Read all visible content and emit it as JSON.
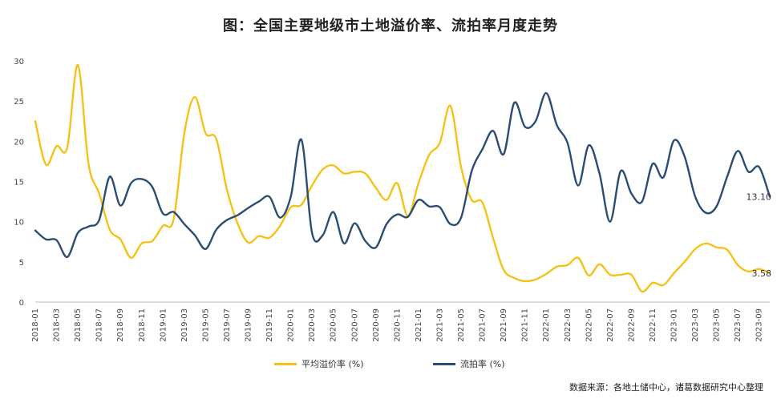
{
  "chart_data": {
    "type": "line",
    "title": "图：全国主要地级市土地溢价率、流拍率月度走势",
    "xlabel": "",
    "ylabel": "",
    "ylim": [
      0,
      30
    ],
    "y_ticks": [
      0,
      5,
      10,
      15,
      20,
      25,
      30
    ],
    "grid": false,
    "legend_position": "bottom",
    "x_tick_labels": [
      "2018-01",
      "2018-03",
      "2018-05",
      "2018-07",
      "2018-09",
      "2018-11",
      "2019-01",
      "2019-03",
      "2019-05",
      "2019-07",
      "2019-09",
      "2019-11",
      "2020-01",
      "2020-03",
      "2020-05",
      "2020-07",
      "2020-09",
      "2020-11",
      "2021-01",
      "2021-03",
      "2021-05",
      "2021-07",
      "2021-09",
      "2021-11",
      "2022-01",
      "2022-03",
      "2022-05",
      "2022-07",
      "2022-09",
      "2022-11",
      "2023-01",
      "2023-03",
      "2023-05",
      "2023-07",
      "2023-09"
    ],
    "x": [
      "2018-01",
      "2018-02",
      "2018-03",
      "2018-04",
      "2018-05",
      "2018-06",
      "2018-07",
      "2018-08",
      "2018-09",
      "2018-10",
      "2018-11",
      "2018-12",
      "2019-01",
      "2019-02",
      "2019-03",
      "2019-04",
      "2019-05",
      "2019-06",
      "2019-07",
      "2019-08",
      "2019-09",
      "2019-10",
      "2019-11",
      "2019-12",
      "2020-01",
      "2020-02",
      "2020-03",
      "2020-04",
      "2020-05",
      "2020-06",
      "2020-07",
      "2020-08",
      "2020-09",
      "2020-10",
      "2020-11",
      "2020-12",
      "2021-01",
      "2021-02",
      "2021-03",
      "2021-04",
      "2021-05",
      "2021-06",
      "2021-07",
      "2021-08",
      "2021-09",
      "2021-10",
      "2021-11",
      "2021-12",
      "2022-01",
      "2022-02",
      "2022-03",
      "2022-04",
      "2022-05",
      "2022-06",
      "2022-07",
      "2022-08",
      "2022-09",
      "2022-10",
      "2022-11",
      "2022-12",
      "2023-01",
      "2023-02",
      "2023-03",
      "2023-04",
      "2023-05",
      "2023-06",
      "2023-07",
      "2023-08",
      "2023-09",
      "2023-10"
    ],
    "series": [
      {
        "name": "平均溢价率 (%)",
        "color": "#F5C218",
        "end_label": "3.58",
        "values": [
          22.5,
          17.1,
          19.4,
          19.2,
          29.5,
          17.2,
          13.5,
          9.0,
          7.8,
          5.5,
          7.3,
          7.6,
          9.5,
          10.3,
          21.0,
          25.5,
          21.0,
          20.3,
          14.0,
          9.8,
          7.4,
          8.2,
          8.0,
          9.5,
          11.8,
          12.1,
          14.5,
          16.5,
          17.0,
          16.0,
          16.2,
          16.0,
          14.2,
          12.7,
          14.8,
          10.7,
          14.8,
          18.3,
          19.8,
          24.4,
          16.8,
          12.7,
          12.4,
          8.0,
          4.0,
          3.0,
          2.6,
          2.8,
          3.5,
          4.4,
          4.6,
          5.5,
          3.3,
          4.7,
          3.4,
          3.4,
          3.4,
          1.3,
          2.4,
          2.1,
          3.6,
          5.0,
          6.6,
          7.3,
          6.8,
          6.5,
          4.6,
          3.8,
          4.1,
          3.58
        ]
      },
      {
        "name": "流拍率 (%)",
        "color": "#2B4C74",
        "end_label": "13.10",
        "values": [
          8.9,
          7.8,
          7.7,
          5.6,
          8.6,
          9.4,
          10.2,
          15.6,
          12.0,
          14.8,
          15.3,
          14.3,
          11.0,
          11.2,
          9.7,
          8.3,
          6.6,
          9.0,
          10.2,
          10.8,
          11.7,
          12.5,
          13.1,
          10.5,
          13.1,
          20.2,
          8.6,
          8.3,
          11.2,
          7.3,
          9.8,
          7.6,
          6.8,
          9.7,
          10.9,
          10.6,
          12.7,
          11.9,
          11.8,
          9.7,
          10.5,
          16.3,
          19.0,
          21.3,
          18.4,
          24.8,
          21.8,
          22.5,
          26.0,
          22.0,
          19.8,
          14.5,
          19.5,
          16.0,
          10.0,
          16.3,
          13.5,
          12.5,
          17.2,
          15.5,
          20.1,
          18.1,
          13.1,
          11.1,
          11.9,
          15.6,
          18.8,
          16.2,
          16.8,
          13.1
        ]
      }
    ]
  },
  "source_note": "数据来源：各地土储中心，诸葛数据研究中心整理"
}
